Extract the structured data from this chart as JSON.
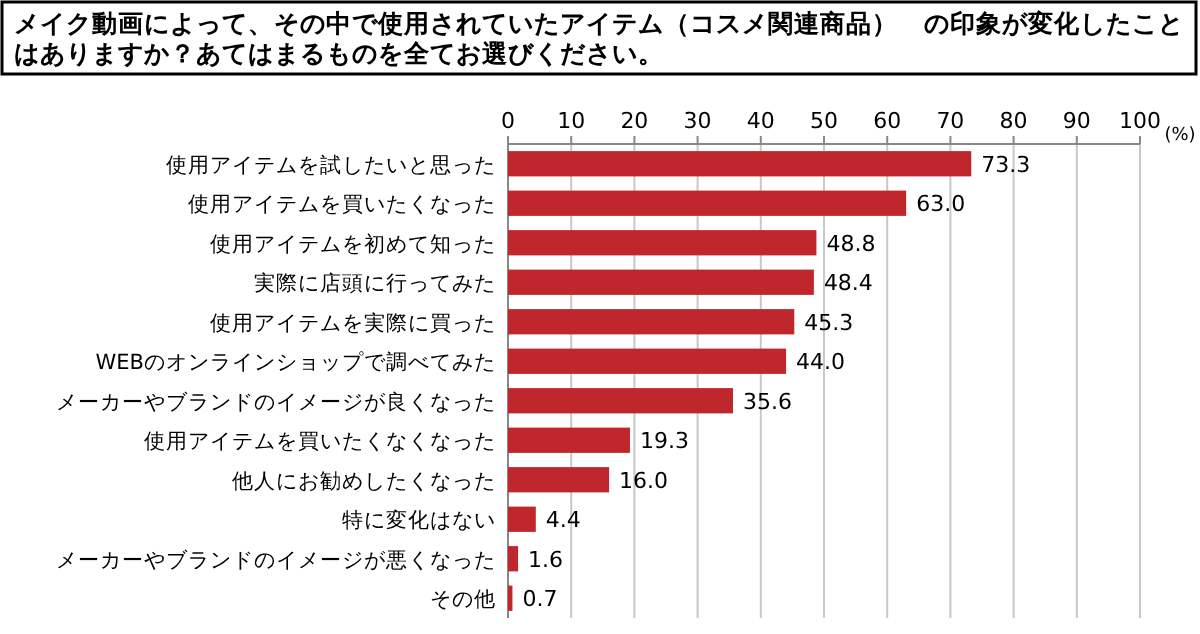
{
  "chart_data": {
    "type": "bar",
    "orientation": "horizontal",
    "title": "メイク動画によって、その中で使用されていたアイテム（コスメ関連商品）　の印象が変化したことはありますか？あてはまるものを全てお選びください。",
    "xlabel": "(%)",
    "categories": [
      "使用アイテムを試したいと思った",
      "使用アイテムを買いたくなった",
      "使用アイテムを初めて知った",
      "実際に店頭に行ってみた",
      "使用アイテムを実際に買った",
      "WEBのオンラインショップで調べてみた",
      "メーカーやブランドのイメージが良くなった",
      "使用アイテムを買いたくなくなった",
      "他人にお勧めしたくなった",
      "特に変化はない",
      "メーカーやブランドのイメージが悪くなった",
      "その他"
    ],
    "values": [
      73.3,
      63.0,
      48.8,
      48.4,
      45.3,
      44.0,
      35.6,
      19.3,
      16.0,
      4.4,
      1.6,
      0.7
    ],
    "value_labels": [
      "73.3",
      "63.0",
      "48.8",
      "48.4",
      "45.3",
      "44.0",
      "35.6",
      "19.3",
      "16.0",
      "4.4",
      "1.6",
      "0.7"
    ],
    "color": "#c0272d",
    "xlim": [
      0,
      100
    ],
    "xticks": [
      0,
      10,
      20,
      30,
      40,
      50,
      60,
      70,
      80,
      90,
      100
    ],
    "grid": "x"
  }
}
